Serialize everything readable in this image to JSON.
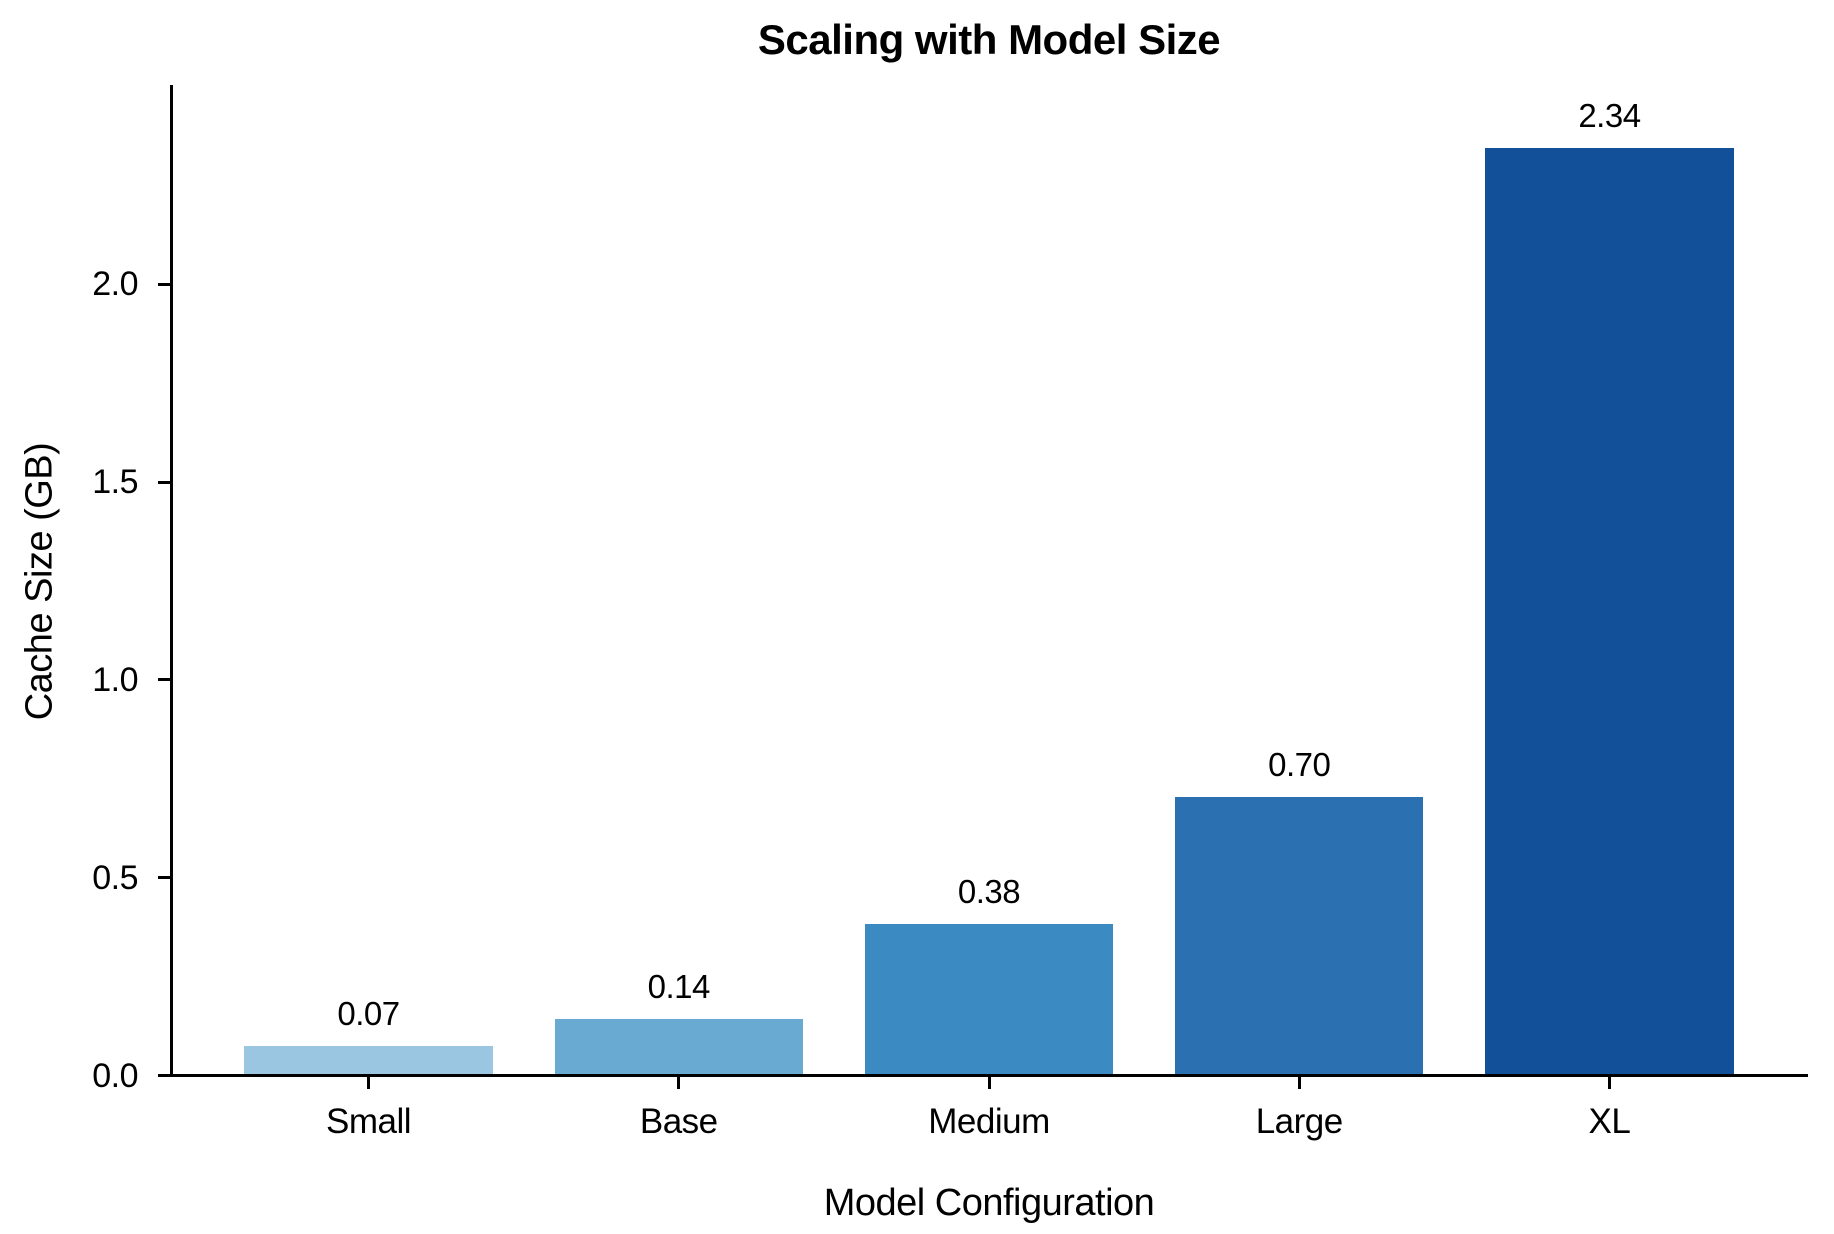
{
  "chart_data": {
    "type": "bar",
    "title": "Scaling with Model Size",
    "xlabel": "Model Configuration",
    "ylabel": "Cache Size (GB)",
    "categories": [
      "Small",
      "Base",
      "Medium",
      "Large",
      "XL"
    ],
    "values": [
      0.07,
      0.14,
      0.38,
      0.7,
      2.34
    ],
    "value_labels": [
      "0.07",
      "0.14",
      "0.38",
      "0.70",
      "2.34"
    ],
    "bar_colors": [
      "#9ac6e1",
      "#69aad3",
      "#3b8ac1",
      "#2b70b1",
      "#12509a"
    ],
    "yticks": [
      0.0,
      0.5,
      1.0,
      1.5,
      2.0
    ],
    "ytick_labels": [
      "0.0",
      "0.5",
      "1.0",
      "1.5",
      "2.0"
    ],
    "ylim": [
      0,
      2.5
    ],
    "grid": false,
    "legend_position": "none",
    "axis_color": "#000000",
    "text_color": "#000000",
    "background_color": "#ffffff"
  }
}
